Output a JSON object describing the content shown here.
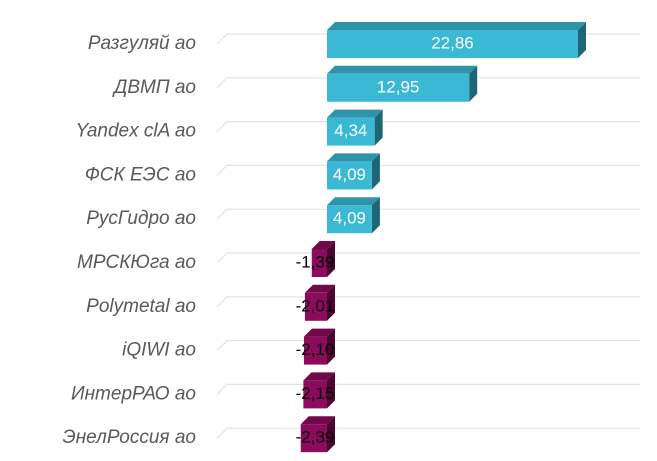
{
  "chart_data": {
    "type": "bar",
    "orientation": "horizontal",
    "categories": [
      "Разгуляй  ао",
      "ДВМП ао",
      "Yandex clA  ао",
      "ФСК ЕЭС  ао",
      "РусГидро  ао",
      "МРСКЮга ао",
      "Polymetal   ао",
      "iQIWI   ао",
      "ИнтерРАО ао",
      "ЭнелРоссия  ао"
    ],
    "values": [
      22.86,
      12.95,
      4.34,
      4.09,
      4.09,
      -1.39,
      -2.01,
      -2.1,
      -2.15,
      -2.39
    ],
    "value_labels": [
      "22,86",
      "12,95",
      "4,34",
      "4,09",
      "4,09",
      "-1,39",
      "-2,01",
      "-2,10",
      "-2,15",
      "-2,39"
    ],
    "positive_color": "#3bb8d4",
    "negative_color": "#8c0b5c",
    "grid": true
  }
}
